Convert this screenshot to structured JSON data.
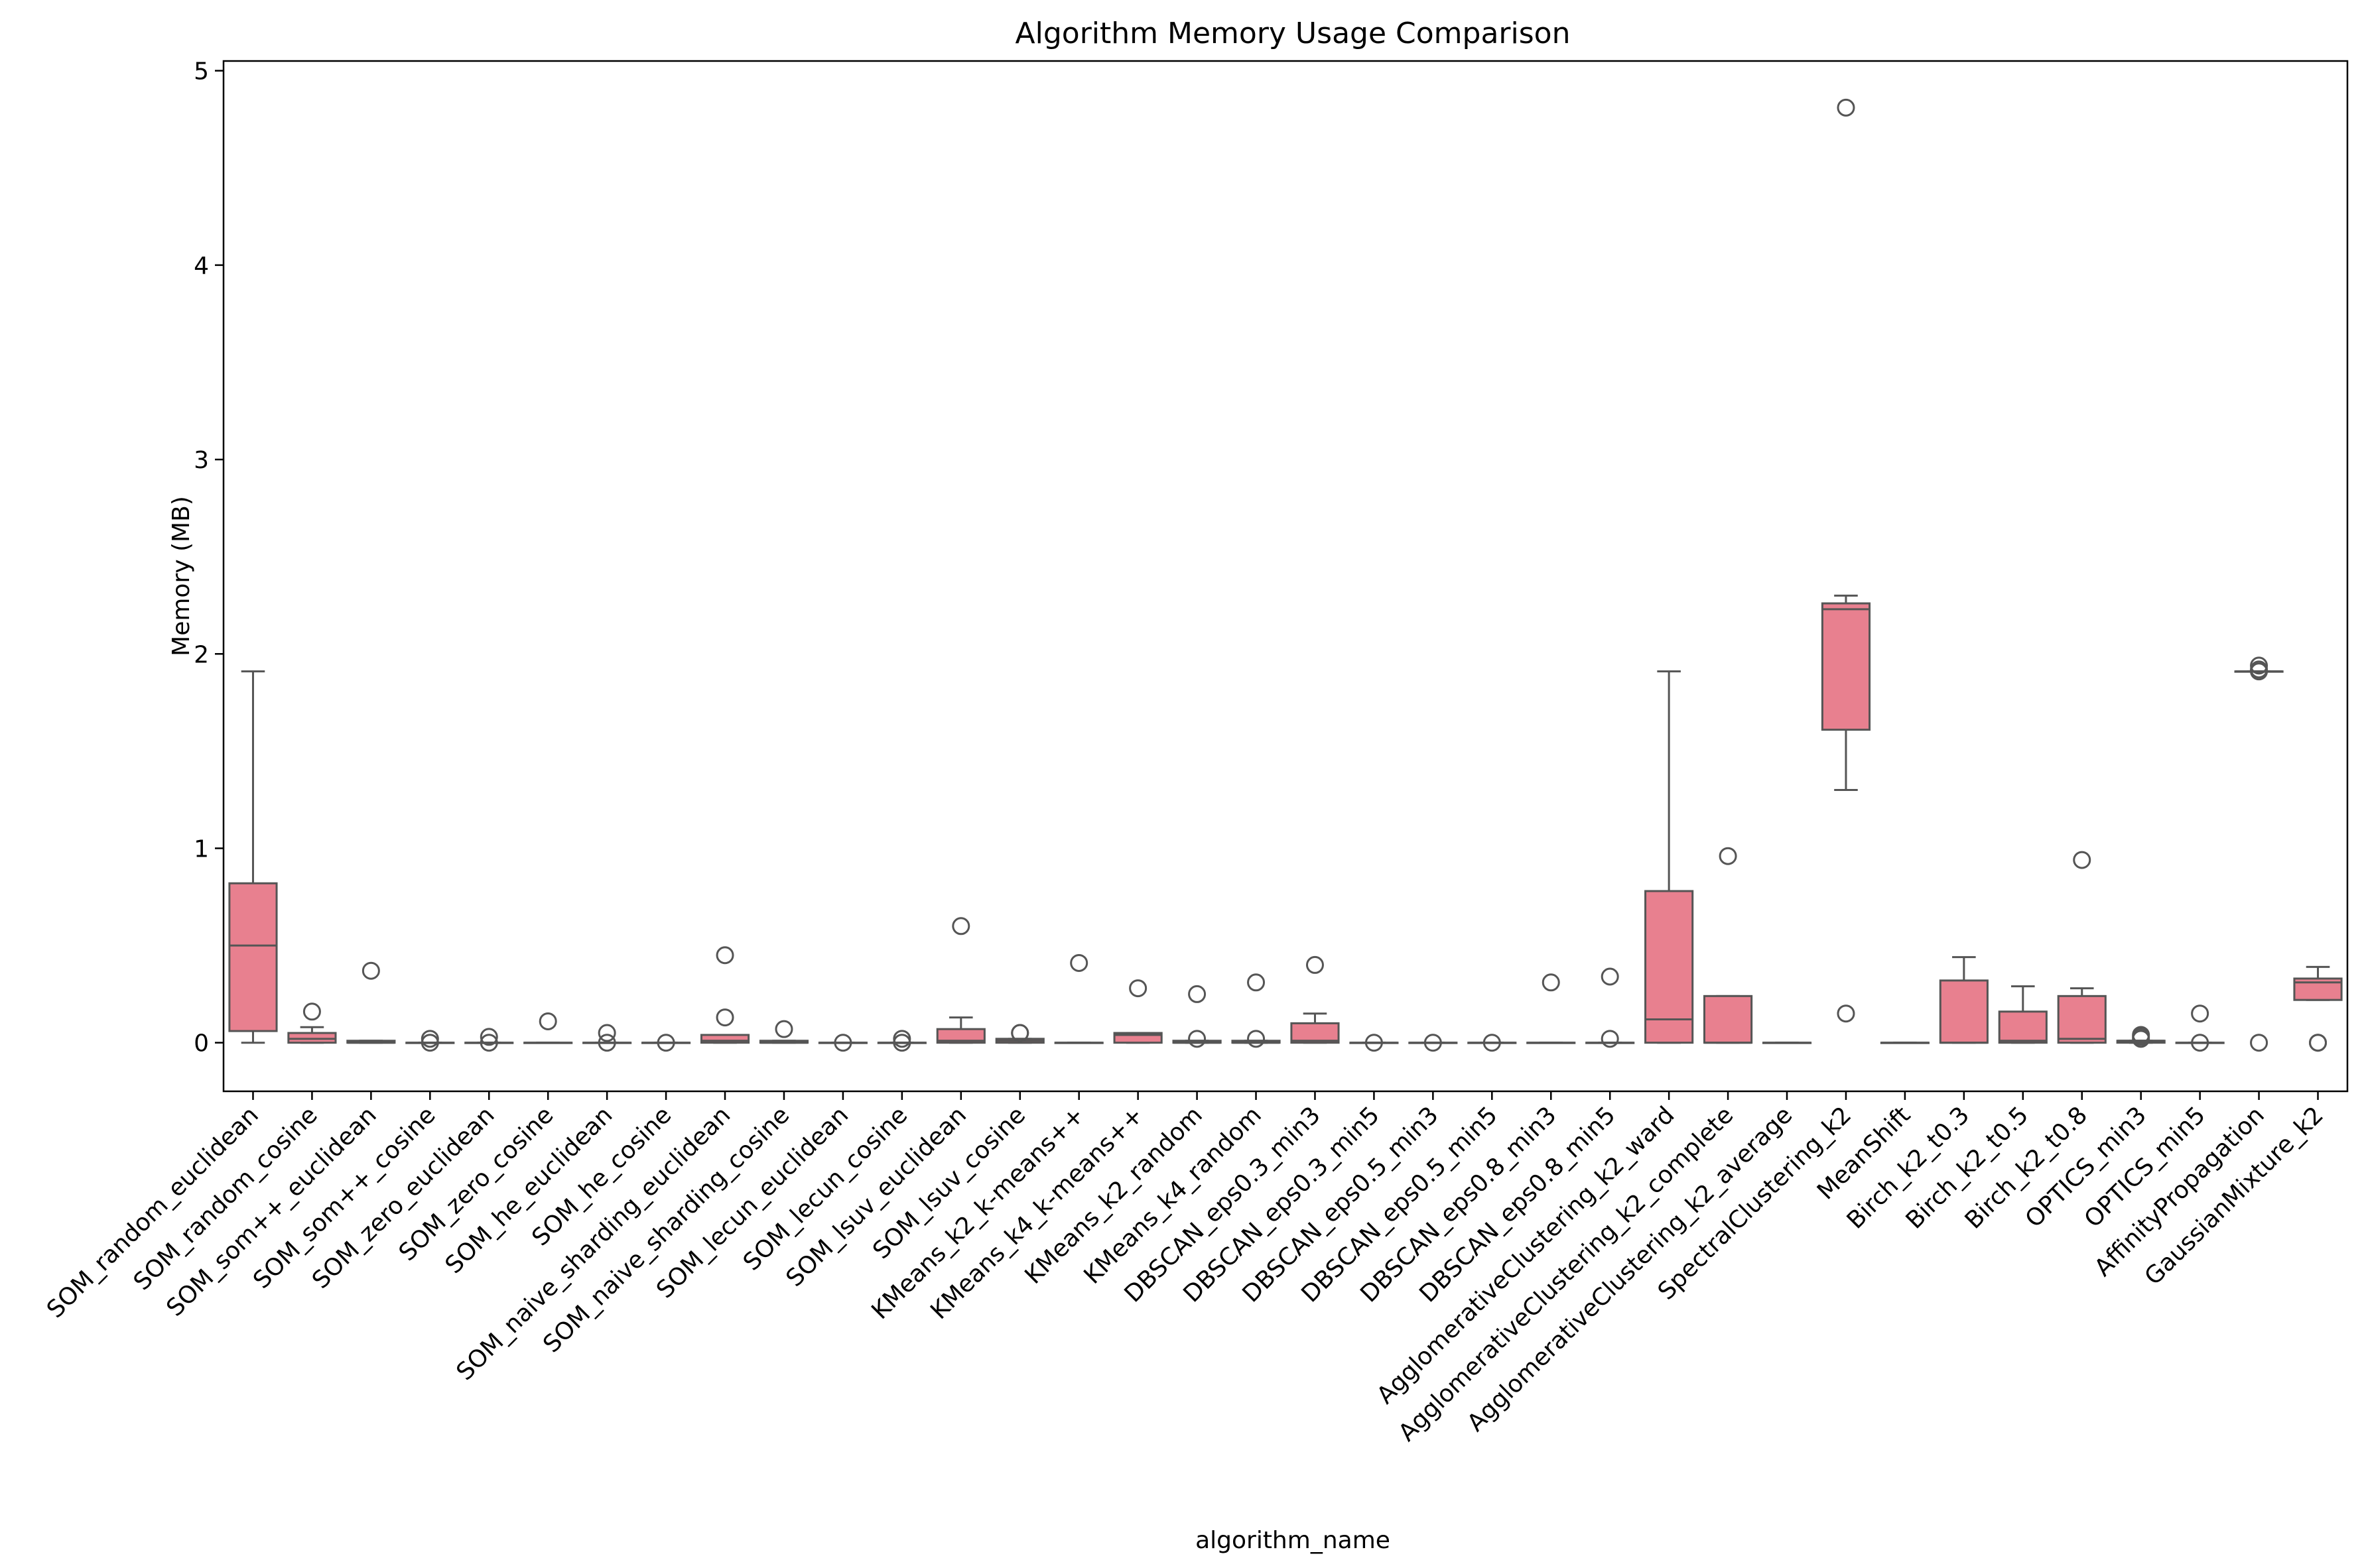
{
  "chart_data": {
    "type": "box",
    "title": "Algorithm Memory Usage Comparison",
    "xlabel": "algorithm_name",
    "ylabel": "Memory (MB)",
    "ylim": [
      -0.25,
      5.05
    ],
    "yticks": [
      0,
      1,
      2,
      3,
      4,
      5
    ],
    "grid": false,
    "legend": "none",
    "colors": {
      "box_fill": "#e8808f",
      "line": "#555555",
      "axis": "#000000"
    },
    "categories": [
      {
        "label": "SOM_random_euclidean",
        "q1": 0.06,
        "median": 0.5,
        "q3": 0.82,
        "whisker_low": 0.0,
        "whisker_high": 1.91,
        "outliers": []
      },
      {
        "label": "SOM_random_cosine",
        "q1": 0.0,
        "median": 0.02,
        "q3": 0.05,
        "whisker_low": 0.0,
        "whisker_high": 0.08,
        "outliers": [
          0.16
        ]
      },
      {
        "label": "SOM_som++_euclidean",
        "q1": 0.0,
        "median": 0.0,
        "q3": 0.01,
        "whisker_low": 0.0,
        "whisker_high": 0.01,
        "outliers": [
          0.37
        ]
      },
      {
        "label": "SOM_som++_cosine",
        "q1": 0.0,
        "median": 0.0,
        "q3": 0.0,
        "whisker_low": 0.0,
        "whisker_high": 0.0,
        "outliers": [
          0.0,
          0.02
        ]
      },
      {
        "label": "SOM_zero_euclidean",
        "q1": 0.0,
        "median": 0.0,
        "q3": 0.0,
        "whisker_low": 0.0,
        "whisker_high": 0.0,
        "outliers": [
          0.0,
          0.03
        ]
      },
      {
        "label": "SOM_zero_cosine",
        "q1": 0.0,
        "median": 0.0,
        "q3": 0.0,
        "whisker_low": 0.0,
        "whisker_high": 0.0,
        "outliers": [
          0.11
        ]
      },
      {
        "label": "SOM_he_euclidean",
        "q1": 0.0,
        "median": 0.0,
        "q3": 0.0,
        "whisker_low": 0.0,
        "whisker_high": 0.0,
        "outliers": [
          0.0,
          0.05
        ]
      },
      {
        "label": "SOM_he_cosine",
        "q1": 0.0,
        "median": 0.0,
        "q3": 0.0,
        "whisker_low": 0.0,
        "whisker_high": 0.0,
        "outliers": [
          0.0
        ]
      },
      {
        "label": "SOM_naive_sharding_euclidean",
        "q1": 0.0,
        "median": 0.01,
        "q3": 0.04,
        "whisker_low": 0.0,
        "whisker_high": 0.04,
        "outliers": [
          0.13,
          0.45
        ]
      },
      {
        "label": "SOM_naive_sharding_cosine",
        "q1": 0.0,
        "median": 0.0,
        "q3": 0.01,
        "whisker_low": 0.0,
        "whisker_high": 0.01,
        "outliers": [
          0.07
        ]
      },
      {
        "label": "SOM_lecun_euclidean",
        "q1": 0.0,
        "median": 0.0,
        "q3": 0.0,
        "whisker_low": 0.0,
        "whisker_high": 0.0,
        "outliers": [
          0.0
        ]
      },
      {
        "label": "SOM_lecun_cosine",
        "q1": 0.0,
        "median": 0.0,
        "q3": 0.0,
        "whisker_low": 0.0,
        "whisker_high": 0.0,
        "outliers": [
          0.0,
          0.02
        ]
      },
      {
        "label": "SOM_lsuv_euclidean",
        "q1": 0.0,
        "median": 0.01,
        "q3": 0.07,
        "whisker_low": 0.0,
        "whisker_high": 0.13,
        "outliers": [
          0.6
        ]
      },
      {
        "label": "SOM_lsuv_cosine",
        "q1": 0.0,
        "median": 0.01,
        "q3": 0.02,
        "whisker_low": 0.0,
        "whisker_high": 0.02,
        "outliers": [
          0.05,
          0.05
        ]
      },
      {
        "label": "KMeans_k2_k-means++",
        "q1": 0.0,
        "median": 0.0,
        "q3": 0.0,
        "whisker_low": 0.0,
        "whisker_high": 0.0,
        "outliers": [
          0.41
        ]
      },
      {
        "label": "KMeans_k4_k-means++",
        "q1": 0.0,
        "median": 0.04,
        "q3": 0.05,
        "whisker_low": 0.0,
        "whisker_high": 0.05,
        "outliers": [
          0.28
        ]
      },
      {
        "label": "KMeans_k2_random",
        "q1": 0.0,
        "median": 0.0,
        "q3": 0.01,
        "whisker_low": 0.0,
        "whisker_high": 0.01,
        "outliers": [
          0.02,
          0.25
        ]
      },
      {
        "label": "KMeans_k4_random",
        "q1": 0.0,
        "median": 0.0,
        "q3": 0.01,
        "whisker_low": 0.0,
        "whisker_high": 0.01,
        "outliers": [
          0.02,
          0.31
        ]
      },
      {
        "label": "DBSCAN_eps0.3_min3",
        "q1": 0.0,
        "median": 0.01,
        "q3": 0.1,
        "whisker_low": 0.0,
        "whisker_high": 0.15,
        "outliers": [
          0.4
        ]
      },
      {
        "label": "DBSCAN_eps0.3_min5",
        "q1": 0.0,
        "median": 0.0,
        "q3": 0.0,
        "whisker_low": 0.0,
        "whisker_high": 0.0,
        "outliers": [
          0.0
        ]
      },
      {
        "label": "DBSCAN_eps0.5_min3",
        "q1": 0.0,
        "median": 0.0,
        "q3": 0.0,
        "whisker_low": 0.0,
        "whisker_high": 0.0,
        "outliers": [
          0.0
        ]
      },
      {
        "label": "DBSCAN_eps0.5_min5",
        "q1": 0.0,
        "median": 0.0,
        "q3": 0.0,
        "whisker_low": 0.0,
        "whisker_high": 0.0,
        "outliers": [
          0.0
        ]
      },
      {
        "label": "DBSCAN_eps0.8_min3",
        "q1": 0.0,
        "median": 0.0,
        "q3": 0.0,
        "whisker_low": 0.0,
        "whisker_high": 0.0,
        "outliers": [
          0.31
        ]
      },
      {
        "label": "DBSCAN_eps0.8_min5",
        "q1": 0.0,
        "median": 0.0,
        "q3": 0.0,
        "whisker_low": 0.0,
        "whisker_high": 0.0,
        "outliers": [
          0.02,
          0.34
        ]
      },
      {
        "label": "AgglomerativeClustering_k2_ward",
        "q1": 0.0,
        "median": 0.12,
        "q3": 0.78,
        "whisker_low": 0.0,
        "whisker_high": 1.91,
        "outliers": []
      },
      {
        "label": "AgglomerativeClustering_k2_complete",
        "q1": 0.0,
        "median": 0.0,
        "q3": 0.24,
        "whisker_low": 0.0,
        "whisker_high": 0.24,
        "outliers": [
          0.96
        ]
      },
      {
        "label": "AgglomerativeClustering_k2_average",
        "q1": 0.0,
        "median": 0.0,
        "q3": 0.0,
        "whisker_low": 0.0,
        "whisker_high": 0.0,
        "outliers": []
      },
      {
        "label": "SpectralClustering_k2",
        "q1": 1.61,
        "median": 2.23,
        "q3": 2.26,
        "whisker_low": 1.3,
        "whisker_high": 2.3,
        "outliers": [
          0.15,
          4.81
        ]
      },
      {
        "label": "MeanShift",
        "q1": 0.0,
        "median": 0.0,
        "q3": 0.0,
        "whisker_low": 0.0,
        "whisker_high": 0.0,
        "outliers": []
      },
      {
        "label": "Birch_k2_t0.3",
        "q1": 0.0,
        "median": 0.0,
        "q3": 0.32,
        "whisker_low": 0.0,
        "whisker_high": 0.44,
        "outliers": []
      },
      {
        "label": "Birch_k2_t0.5",
        "q1": 0.0,
        "median": 0.01,
        "q3": 0.16,
        "whisker_low": 0.0,
        "whisker_high": 0.29,
        "outliers": []
      },
      {
        "label": "Birch_k2_t0.8",
        "q1": 0.0,
        "median": 0.02,
        "q3": 0.24,
        "whisker_low": 0.0,
        "whisker_high": 0.28,
        "outliers": [
          0.94
        ]
      },
      {
        "label": "OPTICS_min3",
        "q1": 0.0,
        "median": 0.01,
        "q3": 0.01,
        "whisker_low": 0.0,
        "whisker_high": 0.01,
        "outliers": [
          0.02,
          0.03,
          0.04
        ]
      },
      {
        "label": "OPTICS_min5",
        "q1": 0.0,
        "median": 0.0,
        "q3": 0.0,
        "whisker_low": 0.0,
        "whisker_high": 0.0,
        "outliers": [
          0.0,
          0.15
        ]
      },
      {
        "label": "AffinityPropagation",
        "q1": 1.91,
        "median": 1.91,
        "q3": 1.91,
        "whisker_low": 1.91,
        "whisker_high": 1.91,
        "outliers": [
          0.0,
          1.91,
          1.92,
          1.94
        ]
      },
      {
        "label": "GaussianMixture_k2",
        "q1": 0.22,
        "median": 0.31,
        "q3": 0.33,
        "whisker_low": 0.22,
        "whisker_high": 0.39,
        "outliers": [
          0.0,
          0.0
        ]
      }
    ]
  }
}
